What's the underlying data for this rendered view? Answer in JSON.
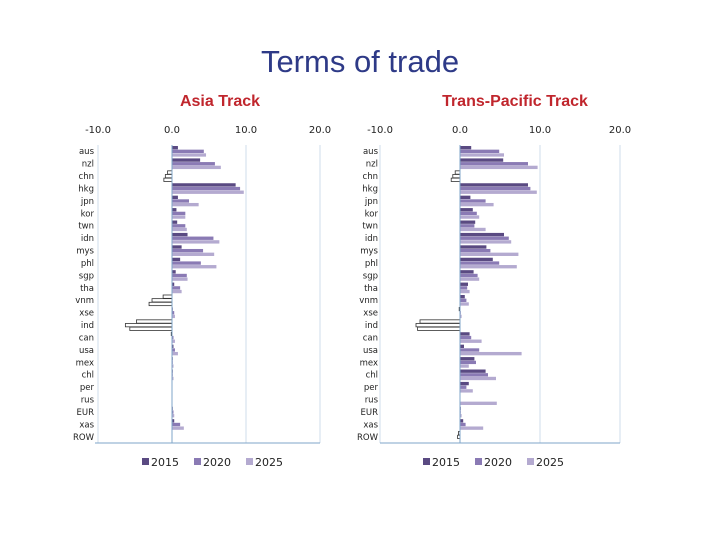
{
  "slide_title": "Terms of trade",
  "colors": {
    "s2015": "#5a4a82",
    "s2020": "#8a7ab4",
    "s2025": "#b4aad0",
    "title": "#2e3a87",
    "chart_title": "#c0262d",
    "axis": "#7fa6c9",
    "grid": "#cfdceb"
  },
  "chart_data": [
    {
      "type": "bar",
      "orientation": "horizontal",
      "title": "Asia Track",
      "categories": [
        "aus",
        "nzl",
        "chn",
        "hkg",
        "jpn",
        "kor",
        "twn",
        "idn",
        "mys",
        "phl",
        "sgp",
        "tha",
        "vnm",
        "xse",
        "ind",
        "can",
        "usa",
        "mex",
        "chl",
        "per",
        "rus",
        "EUR",
        "xas",
        "ROW"
      ],
      "xlim": [
        -10,
        20
      ],
      "xticks": [
        "-10.0",
        "0.0",
        "10.0",
        "20.0"
      ],
      "legend": [
        "2015",
        "2020",
        "2025"
      ],
      "legend_position": "bottom",
      "grid": true,
      "series": [
        {
          "name": "2015",
          "values": [
            0.8,
            3.8,
            -0.6,
            8.6,
            0.8,
            0.6,
            0.7,
            2.1,
            1.3,
            1.1,
            0.5,
            0.3,
            -1.2,
            0.1,
            -4.8,
            -0.1,
            0.2,
            0.1,
            0.1,
            0,
            0,
            0.1,
            0.3,
            0
          ]
        },
        {
          "name": "2020",
          "values": [
            4.3,
            5.8,
            -0.9,
            9.2,
            2.3,
            1.8,
            1.8,
            5.6,
            4.2,
            3.9,
            2.0,
            1.1,
            -2.7,
            0.3,
            -6.3,
            0.2,
            0.4,
            0.1,
            0.1,
            0,
            0,
            0.2,
            1.1,
            0
          ]
        },
        {
          "name": "2025",
          "values": [
            4.6,
            6.6,
            -1.1,
            9.7,
            3.6,
            1.8,
            2.0,
            6.4,
            5.7,
            6.0,
            2.1,
            1.3,
            -3.1,
            0.4,
            -5.7,
            0.4,
            0.8,
            0.2,
            0.2,
            0,
            0,
            0.3,
            1.6,
            0
          ]
        }
      ]
    },
    {
      "type": "bar",
      "orientation": "horizontal",
      "title": "Trans-Pacific Track",
      "categories": [
        "aus",
        "nzl",
        "chn",
        "hkg",
        "jpn",
        "kor",
        "twn",
        "idn",
        "mys",
        "phl",
        "sgp",
        "tha",
        "vnm",
        "xse",
        "ind",
        "can",
        "usa",
        "mex",
        "chl",
        "per",
        "rus",
        "EUR",
        "xas",
        "ROW"
      ],
      "xlim": [
        -10,
        20
      ],
      "xticks": [
        "-10.0",
        "0.0",
        "10.0",
        "20.0"
      ],
      "legend": [
        "2015",
        "2020",
        "2025"
      ],
      "legend_position": "bottom",
      "grid": true,
      "series": [
        {
          "name": "2015",
          "values": [
            1.4,
            5.4,
            -0.6,
            8.5,
            1.3,
            1.6,
            1.9,
            5.5,
            3.3,
            4.1,
            1.7,
            1.0,
            0.6,
            -0.1,
            -5.0,
            1.2,
            0.5,
            1.8,
            3.2,
            1.1,
            0,
            0.1,
            0.4,
            -0.2
          ]
        },
        {
          "name": "2020",
          "values": [
            4.9,
            8.5,
            -0.9,
            8.8,
            3.2,
            2.1,
            1.8,
            6.1,
            3.8,
            4.9,
            2.2,
            0.9,
            0.8,
            0.1,
            -5.5,
            1.4,
            2.4,
            2.0,
            3.5,
            0.8,
            0,
            0.1,
            0.7,
            -0.3
          ]
        },
        {
          "name": "2025",
          "values": [
            5.5,
            9.7,
            -1.1,
            9.6,
            4.2,
            2.4,
            3.2,
            6.4,
            7.3,
            7.1,
            2.4,
            1.2,
            1.1,
            0.2,
            -5.3,
            2.7,
            7.7,
            1.1,
            4.5,
            1.6,
            4.6,
            0.2,
            2.9,
            0
          ]
        }
      ]
    }
  ]
}
